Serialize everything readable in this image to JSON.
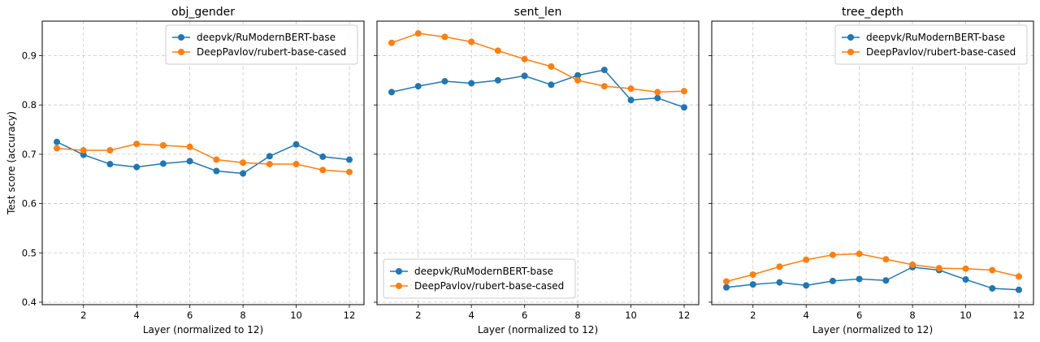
{
  "colors": {
    "series_0": "#1f77b4",
    "series_1": "#ff7f0e"
  },
  "chart_data": [
    {
      "type": "line",
      "title": "obj_gender",
      "xlabel": "Layer (normalized to 12)",
      "ylabel": "Test score (accuracy)",
      "xlim": [
        0.45,
        12.55
      ],
      "ylim": [
        0.395,
        0.97
      ],
      "xticks": [
        2,
        4,
        6,
        8,
        10,
        12
      ],
      "yticks": [
        0.4,
        0.5,
        0.6,
        0.7,
        0.8,
        0.9
      ],
      "grid": true,
      "legend_position": "top-right",
      "x": [
        1,
        2,
        3,
        4,
        5,
        6,
        7,
        8,
        9,
        10,
        11,
        12
      ],
      "series": [
        {
          "name": "deepvk/RuModernBERT-base",
          "color": "#1f77b4",
          "values": [
            0.725,
            0.699,
            0.68,
            0.674,
            0.681,
            0.686,
            0.666,
            0.661,
            0.696,
            0.72,
            0.695,
            0.689
          ]
        },
        {
          "name": "DeepPavlov/rubert-base-cased",
          "color": "#ff7f0e",
          "values": [
            0.712,
            0.708,
            0.708,
            0.721,
            0.718,
            0.715,
            0.689,
            0.683,
            0.68,
            0.68,
            0.668,
            0.664
          ]
        }
      ]
    },
    {
      "type": "line",
      "title": "sent_len",
      "xlabel": "Layer (normalized to 12)",
      "ylabel": "",
      "xlim": [
        0.45,
        12.55
      ],
      "ylim": [
        0.395,
        0.97
      ],
      "xticks": [
        2,
        4,
        6,
        8,
        10,
        12
      ],
      "yticks": [
        0.4,
        0.5,
        0.6,
        0.7,
        0.8,
        0.9
      ],
      "grid": true,
      "legend_position": "bottom-left",
      "x": [
        1,
        2,
        3,
        4,
        5,
        6,
        7,
        8,
        9,
        10,
        11,
        12
      ],
      "series": [
        {
          "name": "deepvk/RuModernBERT-base",
          "color": "#1f77b4",
          "values": [
            0.826,
            0.838,
            0.848,
            0.844,
            0.85,
            0.859,
            0.841,
            0.86,
            0.871,
            0.81,
            0.814,
            0.795
          ]
        },
        {
          "name": "DeepPavlov/rubert-base-cased",
          "color": "#ff7f0e",
          "values": [
            0.926,
            0.945,
            0.938,
            0.928,
            0.91,
            0.893,
            0.878,
            0.85,
            0.838,
            0.833,
            0.826,
            0.828
          ]
        }
      ]
    },
    {
      "type": "line",
      "title": "tree_depth",
      "xlabel": "Layer (normalized to 12)",
      "ylabel": "",
      "xlim": [
        0.45,
        12.55
      ],
      "ylim": [
        0.395,
        0.97
      ],
      "xticks": [
        2,
        4,
        6,
        8,
        10,
        12
      ],
      "yticks": [
        0.4,
        0.5,
        0.6,
        0.7,
        0.8,
        0.9
      ],
      "grid": true,
      "legend_position": "top-right",
      "x": [
        1,
        2,
        3,
        4,
        5,
        6,
        7,
        8,
        9,
        10,
        11,
        12
      ],
      "series": [
        {
          "name": "deepvk/RuModernBERT-base",
          "color": "#1f77b4",
          "values": [
            0.43,
            0.436,
            0.44,
            0.434,
            0.443,
            0.447,
            0.444,
            0.471,
            0.465,
            0.446,
            0.428,
            0.425
          ]
        },
        {
          "name": "DeepPavlov/rubert-base-cased",
          "color": "#ff7f0e",
          "values": [
            0.442,
            0.456,
            0.472,
            0.486,
            0.496,
            0.498,
            0.487,
            0.476,
            0.469,
            0.468,
            0.465,
            0.452
          ]
        }
      ]
    }
  ]
}
